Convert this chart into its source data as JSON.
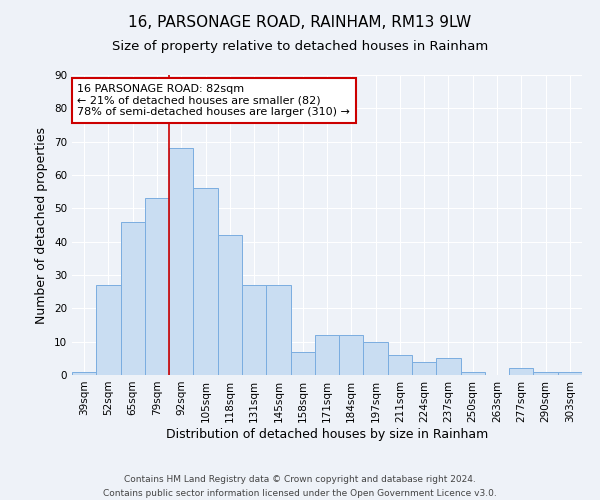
{
  "title": "16, PARSONAGE ROAD, RAINHAM, RM13 9LW",
  "subtitle": "Size of property relative to detached houses in Rainham",
  "xlabel": "Distribution of detached houses by size in Rainham",
  "ylabel": "Number of detached properties",
  "bar_labels": [
    "39sqm",
    "52sqm",
    "65sqm",
    "79sqm",
    "92sqm",
    "105sqm",
    "118sqm",
    "131sqm",
    "145sqm",
    "158sqm",
    "171sqm",
    "184sqm",
    "197sqm",
    "211sqm",
    "224sqm",
    "237sqm",
    "250sqm",
    "263sqm",
    "277sqm",
    "290sqm",
    "303sqm"
  ],
  "bar_values": [
    1,
    27,
    46,
    53,
    68,
    56,
    42,
    27,
    27,
    7,
    12,
    12,
    10,
    6,
    4,
    5,
    1,
    0,
    2,
    1,
    1
  ],
  "bar_color": "#c9ddf2",
  "bar_edge_color": "#7aade0",
  "ylim": [
    0,
    90
  ],
  "yticks": [
    0,
    10,
    20,
    30,
    40,
    50,
    60,
    70,
    80,
    90
  ],
  "vline_x_index": 3.5,
  "vline_color": "#cc0000",
  "annotation_text": "16 PARSONAGE ROAD: 82sqm\n← 21% of detached houses are smaller (82)\n78% of semi-detached houses are larger (310) →",
  "annotation_box_color": "white",
  "annotation_box_edgecolor": "#cc0000",
  "footer_line1": "Contains HM Land Registry data © Crown copyright and database right 2024.",
  "footer_line2": "Contains public sector information licensed under the Open Government Licence v3.0.",
  "bg_color": "#eef2f8",
  "grid_color": "#ffffff",
  "title_fontsize": 11,
  "subtitle_fontsize": 9.5,
  "axis_label_fontsize": 9,
  "tick_fontsize": 7.5,
  "annotation_fontsize": 8,
  "footer_fontsize": 6.5
}
